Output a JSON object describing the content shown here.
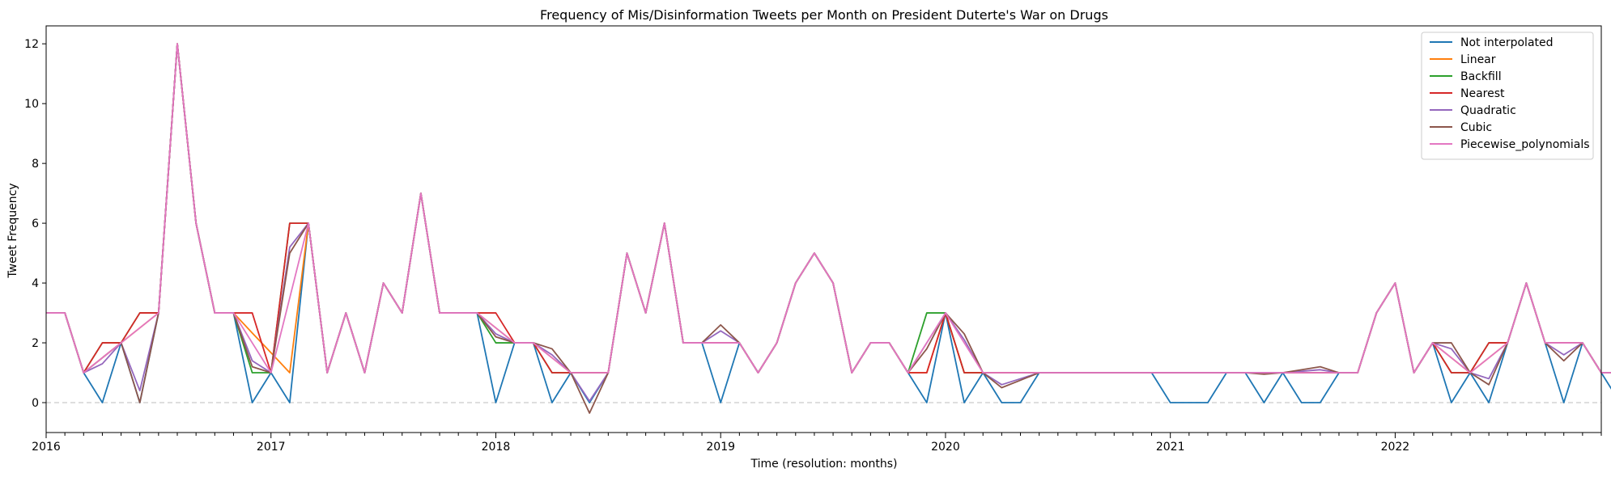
{
  "chart_data": {
    "type": "line",
    "title": "Frequency of Mis/Disinformation Tweets per Month on President Duterte's War on Drugs",
    "xlabel": "Time (resolution: months)",
    "ylabel": "Tweet Frequency",
    "x_start": "2016-01",
    "x_end": "2022-12",
    "xlim": [
      "2016-01",
      "2022-12"
    ],
    "ylim": [
      -1,
      12.6
    ],
    "yticks": [
      0,
      2,
      4,
      6,
      8,
      10,
      12
    ],
    "xticks": [
      {
        "label": "2016",
        "date": "2016-01"
      },
      {
        "label": "2017",
        "date": "2017-01"
      },
      {
        "label": "2018",
        "date": "2018-01"
      },
      {
        "label": "2019",
        "date": "2019-01"
      },
      {
        "label": "2020",
        "date": "2020-01"
      },
      {
        "label": "2021",
        "date": "2021-01"
      },
      {
        "label": "2022",
        "date": "2022-01"
      }
    ],
    "zero_reference_line": {
      "y": 0,
      "style": "dashed",
      "color": "#d3d3d3"
    },
    "grid": false,
    "legend_position": "top-right",
    "series": [
      {
        "name": "Not interpolated",
        "color": "#1f77b4",
        "values": [
          3,
          3,
          1,
          0,
          2,
          0,
          3,
          12,
          6,
          3,
          3,
          0,
          1,
          0,
          6,
          1,
          3,
          1,
          4,
          3,
          7,
          3,
          3,
          3,
          0,
          2,
          2,
          0,
          1,
          0,
          1,
          5,
          3,
          6,
          2,
          2,
          0,
          2,
          1,
          2,
          4,
          5,
          4,
          1,
          2,
          2,
          1,
          0,
          3,
          0,
          1,
          0,
          0,
          1,
          1,
          1,
          1,
          1,
          1,
          1,
          0,
          0,
          0,
          1,
          1,
          0,
          1,
          0,
          0,
          1,
          1,
          3,
          4,
          1,
          2,
          0,
          1,
          0,
          2,
          4,
          2,
          0,
          2,
          1,
          0,
          0
        ]
      },
      {
        "name": "Linear",
        "color": "#ff7f0e",
        "values": [
          3,
          3,
          1,
          1.5,
          2,
          2.5,
          3,
          12,
          6,
          3,
          3,
          2.33,
          1.67,
          1,
          6,
          1,
          3,
          1,
          4,
          3,
          7,
          3,
          3,
          3,
          2.5,
          2,
          2,
          1.5,
          1,
          1,
          1,
          5,
          3,
          6,
          2,
          2,
          2,
          2,
          1,
          2,
          4,
          5,
          4,
          1,
          2,
          2,
          1,
          1,
          3,
          1,
          1,
          1,
          1,
          1,
          1,
          1,
          1,
          1,
          1,
          1,
          1,
          1,
          1,
          1,
          1,
          1,
          1,
          1,
          1,
          1,
          1,
          3,
          4,
          1,
          2,
          1.5,
          1,
          1.5,
          2,
          4,
          2,
          2,
          2,
          1,
          1,
          1
        ]
      },
      {
        "name": "Backfill",
        "color": "#2ca02c",
        "values": [
          3,
          3,
          1,
          2,
          2,
          3,
          3,
          12,
          6,
          3,
          3,
          1,
          1,
          6,
          6,
          1,
          3,
          1,
          4,
          3,
          7,
          3,
          3,
          3,
          2,
          2,
          2,
          1,
          1,
          1,
          1,
          5,
          3,
          6,
          2,
          2,
          2,
          2,
          1,
          2,
          4,
          5,
          4,
          1,
          2,
          2,
          1,
          3,
          3,
          1,
          1,
          1,
          1,
          1,
          1,
          1,
          1,
          1,
          1,
          1,
          1,
          1,
          1,
          1,
          1,
          1,
          1,
          1,
          1,
          1,
          1,
          3,
          4,
          1,
          2,
          1,
          1,
          2,
          2,
          4,
          2,
          2,
          2,
          1,
          1,
          1
        ]
      },
      {
        "name": "Nearest",
        "color": "#d62728",
        "values": [
          3,
          3,
          1,
          2,
          2,
          3,
          3,
          12,
          6,
          3,
          3,
          3,
          1,
          6,
          6,
          1,
          3,
          1,
          4,
          3,
          7,
          3,
          3,
          3,
          3,
          2,
          2,
          1,
          1,
          1,
          1,
          5,
          3,
          6,
          2,
          2,
          2,
          2,
          1,
          2,
          4,
          5,
          4,
          1,
          2,
          2,
          1,
          1,
          3,
          1,
          1,
          1,
          1,
          1,
          1,
          1,
          1,
          1,
          1,
          1,
          1,
          1,
          1,
          1,
          1,
          1,
          1,
          1,
          1,
          1,
          1,
          3,
          4,
          1,
          2,
          1,
          1,
          2,
          2,
          4,
          2,
          2,
          2,
          1,
          1,
          1
        ]
      },
      {
        "name": "Quadratic",
        "color": "#9467bd",
        "values": [
          3,
          3,
          1,
          1.3,
          2,
          0.4,
          3,
          12,
          6,
          3,
          3,
          1.4,
          1,
          5.2,
          6,
          1,
          3,
          1,
          4,
          3,
          7,
          3,
          3,
          3,
          2.3,
          2,
          2,
          1.6,
          1,
          0.05,
          1,
          5,
          3,
          6,
          2,
          2,
          2.4,
          2,
          1,
          2,
          4,
          5,
          4,
          1,
          2,
          2,
          1,
          2,
          3,
          2.1,
          1,
          0.6,
          0.8,
          1,
          1,
          1,
          1,
          1,
          1,
          1,
          1,
          1,
          1,
          1,
          1,
          1,
          1,
          1.05,
          1.1,
          1,
          1,
          3,
          4,
          1,
          2,
          1.8,
          1,
          0.8,
          2,
          4,
          2,
          1.6,
          2,
          1,
          1,
          1
        ]
      },
      {
        "name": "Cubic",
        "color": "#8c564b",
        "values": [
          3,
          3,
          1,
          1.5,
          2,
          0,
          3,
          12,
          6,
          3,
          3,
          1.2,
          1,
          5,
          6,
          1,
          3,
          1,
          4,
          3,
          7,
          3,
          3,
          3,
          2.2,
          2,
          2,
          1.8,
          1,
          -0.35,
          1,
          5,
          3,
          6,
          2,
          2,
          2.6,
          2,
          1,
          2,
          4,
          5,
          4,
          1,
          2,
          2,
          1,
          1.8,
          3,
          2.3,
          1,
          0.5,
          0.75,
          1,
          1,
          1,
          1,
          1,
          1,
          1,
          1,
          1,
          1,
          1,
          1,
          0.95,
          1,
          1.1,
          1.2,
          1,
          1,
          3,
          4,
          1,
          2,
          2,
          1,
          0.6,
          2,
          4,
          2,
          1.4,
          2,
          1,
          1,
          1
        ]
      },
      {
        "name": "Piecewise_polynomials",
        "color": "#e377c2",
        "values": [
          3,
          3,
          1,
          1.5,
          2,
          2.5,
          3,
          12,
          6,
          3,
          3,
          2,
          1,
          3.5,
          6,
          1,
          3,
          1,
          4,
          3,
          7,
          3,
          3,
          3,
          2.5,
          2,
          2,
          1.5,
          1,
          1,
          1,
          5,
          3,
          6,
          2,
          2,
          2,
          2,
          1,
          2,
          4,
          5,
          4,
          1,
          2,
          2,
          1,
          2,
          3,
          2,
          1,
          1,
          1,
          1,
          1,
          1,
          1,
          1,
          1,
          1,
          1,
          1,
          1,
          1,
          1,
          1,
          1,
          1,
          1,
          1,
          1,
          3,
          4,
          1,
          2,
          1.5,
          1,
          1.5,
          2,
          4,
          2,
          2,
          2,
          1,
          1,
          1
        ]
      }
    ]
  }
}
